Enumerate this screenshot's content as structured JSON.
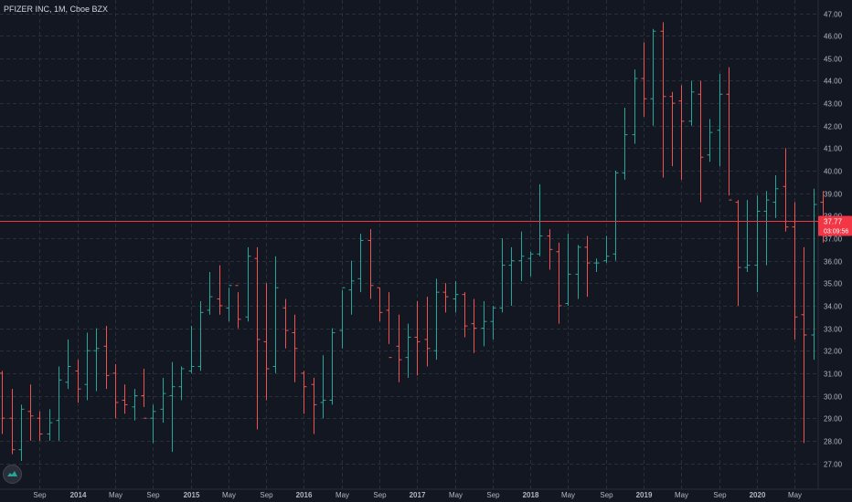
{
  "header": {
    "title": "PFIZER INC, 1M, Cboe BZX"
  },
  "price_label": {
    "value": "37.77",
    "countdown": "03:09:56"
  },
  "colors": {
    "background": "#131722",
    "grid": "#2a2e39",
    "up": "#26a69a",
    "down": "#ef5350",
    "price_line": "#f23645"
  },
  "chart_data": {
    "type": "ohlc",
    "title": "PFIZER INC, 1M, Cboe BZX",
    "grid": true,
    "y_axis_side": "right",
    "ylim": [
      26.3,
      47.6
    ],
    "y_ticks": [
      "27.00",
      "28.00",
      "29.00",
      "30.00",
      "31.00",
      "32.00",
      "33.00",
      "34.00",
      "35.00",
      "36.00",
      "37.00",
      "38.00",
      "39.00",
      "40.00",
      "41.00",
      "42.00",
      "43.00",
      "44.00",
      "45.00",
      "46.00",
      "47.00"
    ],
    "x_ticks": [
      {
        "i": 4,
        "label": "Sep"
      },
      {
        "i": 8,
        "label": "2014"
      },
      {
        "i": 12,
        "label": "May"
      },
      {
        "i": 16,
        "label": "Sep"
      },
      {
        "i": 20,
        "label": "2015"
      },
      {
        "i": 24,
        "label": "May"
      },
      {
        "i": 28,
        "label": "Sep"
      },
      {
        "i": 32,
        "label": "2016"
      },
      {
        "i": 36,
        "label": "May"
      },
      {
        "i": 40,
        "label": "Sep"
      },
      {
        "i": 44,
        "label": "2017"
      },
      {
        "i": 48,
        "label": "May"
      },
      {
        "i": 52,
        "label": "Sep"
      },
      {
        "i": 56,
        "label": "2018"
      },
      {
        "i": 60,
        "label": "May"
      },
      {
        "i": 64,
        "label": "Sep"
      },
      {
        "i": 68,
        "label": "2019"
      },
      {
        "i": 72,
        "label": "May"
      },
      {
        "i": 76,
        "label": "Sep"
      },
      {
        "i": 80,
        "label": "2020"
      },
      {
        "i": 84,
        "label": "May"
      }
    ],
    "last_price": 37.77,
    "bars": [
      [
        31,
        31.1,
        28.3,
        29.0
      ],
      [
        29.0,
        30.3,
        27.4,
        27.6
      ],
      [
        27.6,
        29.6,
        27.1,
        29.4
      ],
      [
        29.3,
        30.5,
        28.0,
        29.1
      ],
      [
        29.0,
        29.3,
        28.0,
        28.3
      ],
      [
        28.3,
        29.4,
        28.0,
        28.8
      ],
      [
        28.9,
        31.3,
        28.0,
        30.7
      ],
      [
        30.6,
        32.5,
        30.3,
        31.3
      ],
      [
        31.1,
        31.6,
        29.7,
        30.3
      ],
      [
        30.5,
        32.8,
        29.8,
        32.0
      ],
      [
        32.0,
        33.0,
        30.2,
        32.1
      ],
      [
        32.2,
        33.1,
        30.3,
        30.9
      ],
      [
        31.0,
        31.4,
        29.0,
        29.7
      ],
      [
        29.8,
        30.5,
        29.2,
        29.6
      ],
      [
        29.5,
        30.3,
        28.9,
        30.0
      ],
      [
        30.0,
        31.2,
        29.5,
        29.0
      ],
      [
        29.0,
        29.6,
        27.9,
        29.3
      ],
      [
        29.4,
        30.8,
        28.8,
        30.1
      ],
      [
        30.0,
        31.5,
        27.5,
        30.4
      ],
      [
        30.4,
        31.3,
        29.8,
        31.2
      ],
      [
        31.1,
        33.1,
        31.0,
        31.3
      ],
      [
        31.3,
        34.2,
        31.1,
        33.7
      ],
      [
        33.8,
        35.5,
        33.6,
        34.4
      ],
      [
        34.3,
        35.8,
        33.6,
        34.0
      ],
      [
        33.9,
        34.8,
        33.3,
        34.9
      ],
      [
        34.9,
        34.6,
        33.0,
        33.4
      ],
      [
        33.5,
        36.6,
        33.3,
        36.2
      ],
      [
        36.1,
        36.6,
        28.5,
        32.5
      ],
      [
        32.4,
        35.0,
        29.8,
        31.2
      ],
      [
        31.3,
        36.2,
        31.0,
        34.8
      ],
      [
        33.9,
        34.3,
        32.1,
        32.9
      ],
      [
        32.8,
        33.6,
        30.6,
        32.1
      ],
      [
        31.0,
        31.1,
        29.2,
        30.4
      ],
      [
        30.5,
        30.8,
        28.3,
        29.6
      ],
      [
        29.7,
        31.8,
        29.0,
        29.8
      ],
      [
        29.8,
        33.0,
        29.6,
        32.8
      ],
      [
        32.9,
        34.7,
        32.1,
        34.8
      ],
      [
        34.7,
        36.0,
        33.6,
        35.1
      ],
      [
        35.2,
        37.2,
        34.6,
        36.9
      ],
      [
        36.9,
        37.4,
        34.3,
        34.9
      ],
      [
        34.8,
        34.8,
        33.3,
        33.7
      ],
      [
        33.8,
        34.6,
        32.3,
        31.7
      ],
      [
        32.2,
        33.6,
        30.6,
        31.6
      ],
      [
        31.7,
        33.2,
        30.8,
        32.6
      ],
      [
        32.6,
        34.2,
        30.9,
        32.4
      ],
      [
        32.5,
        34.4,
        31.3,
        32.1
      ],
      [
        32.0,
        35.2,
        31.6,
        34.6
      ],
      [
        34.6,
        35.0,
        33.7,
        34.4
      ],
      [
        34.3,
        35.1,
        33.7,
        34.5
      ],
      [
        34.5,
        34.6,
        32.6,
        33.1
      ],
      [
        33.2,
        34.3,
        31.9,
        33.0
      ],
      [
        33.0,
        34.2,
        32.2,
        33.3
      ],
      [
        33.3,
        34.0,
        32.5,
        33.9
      ],
      [
        33.9,
        37.0,
        33.7,
        35.8
      ],
      [
        35.8,
        36.6,
        34.0,
        36.0
      ],
      [
        36.0,
        37.3,
        35.1,
        36.2
      ],
      [
        36.1,
        36.4,
        35.3,
        36.3
      ],
      [
        36.3,
        39.4,
        36.2,
        37.1
      ],
      [
        37.1,
        37.4,
        35.6,
        36.5
      ],
      [
        36.4,
        36.8,
        33.2,
        34.0
      ],
      [
        34.1,
        37.2,
        34.0,
        35.4
      ],
      [
        35.4,
        36.7,
        34.3,
        36.6
      ],
      [
        36.6,
        37.1,
        34.4,
        35.9
      ],
      [
        35.9,
        36.1,
        35.5,
        35.9
      ],
      [
        36.0,
        37.1,
        35.9,
        36.2
      ],
      [
        36.3,
        40.0,
        36.0,
        39.9
      ],
      [
        39.9,
        42.8,
        39.6,
        41.6
      ],
      [
        41.6,
        44.5,
        41.2,
        44.1
      ],
      [
        44.1,
        45.7,
        42.4,
        43.2
      ],
      [
        43.2,
        46.3,
        42.0,
        46.2
      ],
      [
        46.2,
        46.6,
        39.7,
        43.3
      ],
      [
        43.3,
        43.5,
        40.2,
        43.0
      ],
      [
        43.1,
        43.8,
        39.6,
        42.2
      ],
      [
        42.2,
        44.0,
        42.0,
        43.5
      ],
      [
        43.4,
        44.0,
        38.6,
        40.6
      ],
      [
        40.7,
        42.3,
        40.4,
        41.7
      ],
      [
        41.8,
        44.3,
        40.2,
        43.4
      ],
      [
        43.4,
        44.6,
        38.9,
        38.7
      ],
      [
        38.6,
        38.7,
        34.0,
        35.7
      ],
      [
        35.7,
        38.7,
        35.5,
        35.8
      ],
      [
        35.8,
        38.9,
        34.6,
        38.2
      ],
      [
        38.2,
        39.1,
        35.8,
        38.7
      ],
      [
        38.6,
        39.8,
        37.9,
        39.2
      ],
      [
        39.3,
        41.0,
        37.3,
        37.5
      ],
      [
        37.5,
        38.6,
        32.5,
        33.5
      ],
      [
        33.6,
        36.6,
        27.9,
        32.7
      ],
      [
        32.7,
        39.2,
        31.6,
        38.5
      ],
      [
        38.6,
        39.1,
        36.8,
        37.77
      ]
    ]
  }
}
